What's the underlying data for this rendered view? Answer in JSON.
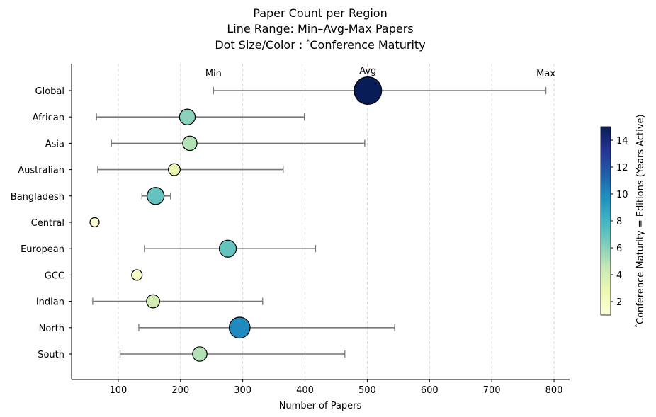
{
  "chart_data": {
    "type": "scatter",
    "title_lines": [
      "Paper Count per Region",
      "Line Range: Min–Avg-Max Papers",
      "Dot Size/Color : *Conference Maturity"
    ],
    "xlabel": "Number of Papers",
    "xlim": [
      25,
      825
    ],
    "xticks": [
      100,
      200,
      300,
      400,
      500,
      600,
      700,
      800
    ],
    "grid": "vertical dashed",
    "annotations": [
      "Min",
      "Avg",
      "Max"
    ],
    "categories": [
      "Global",
      "African",
      "Asia",
      "Australian",
      "Bangladesh",
      "Central",
      "European",
      "GCC",
      "Indian",
      "North",
      "South"
    ],
    "min": [
      253,
      65,
      89,
      67,
      138,
      62,
      142,
      130,
      59,
      133,
      103
    ],
    "avg": [
      501,
      211,
      215,
      190,
      160,
      62,
      276,
      130,
      156,
      295,
      231
    ],
    "max": [
      787,
      399,
      496,
      365,
      184,
      62,
      417,
      130,
      332,
      544,
      464
    ],
    "maturity": [
      15,
      6,
      5,
      3,
      7,
      1,
      7,
      2,
      4,
      10,
      5
    ],
    "colorbar": {
      "label": "*Conference Maturity = Editions (Years Active)",
      "range": [
        1,
        15
      ],
      "ticks": [
        2,
        4,
        6,
        8,
        10,
        12,
        14
      ],
      "colormap": "YlGnBu"
    }
  }
}
